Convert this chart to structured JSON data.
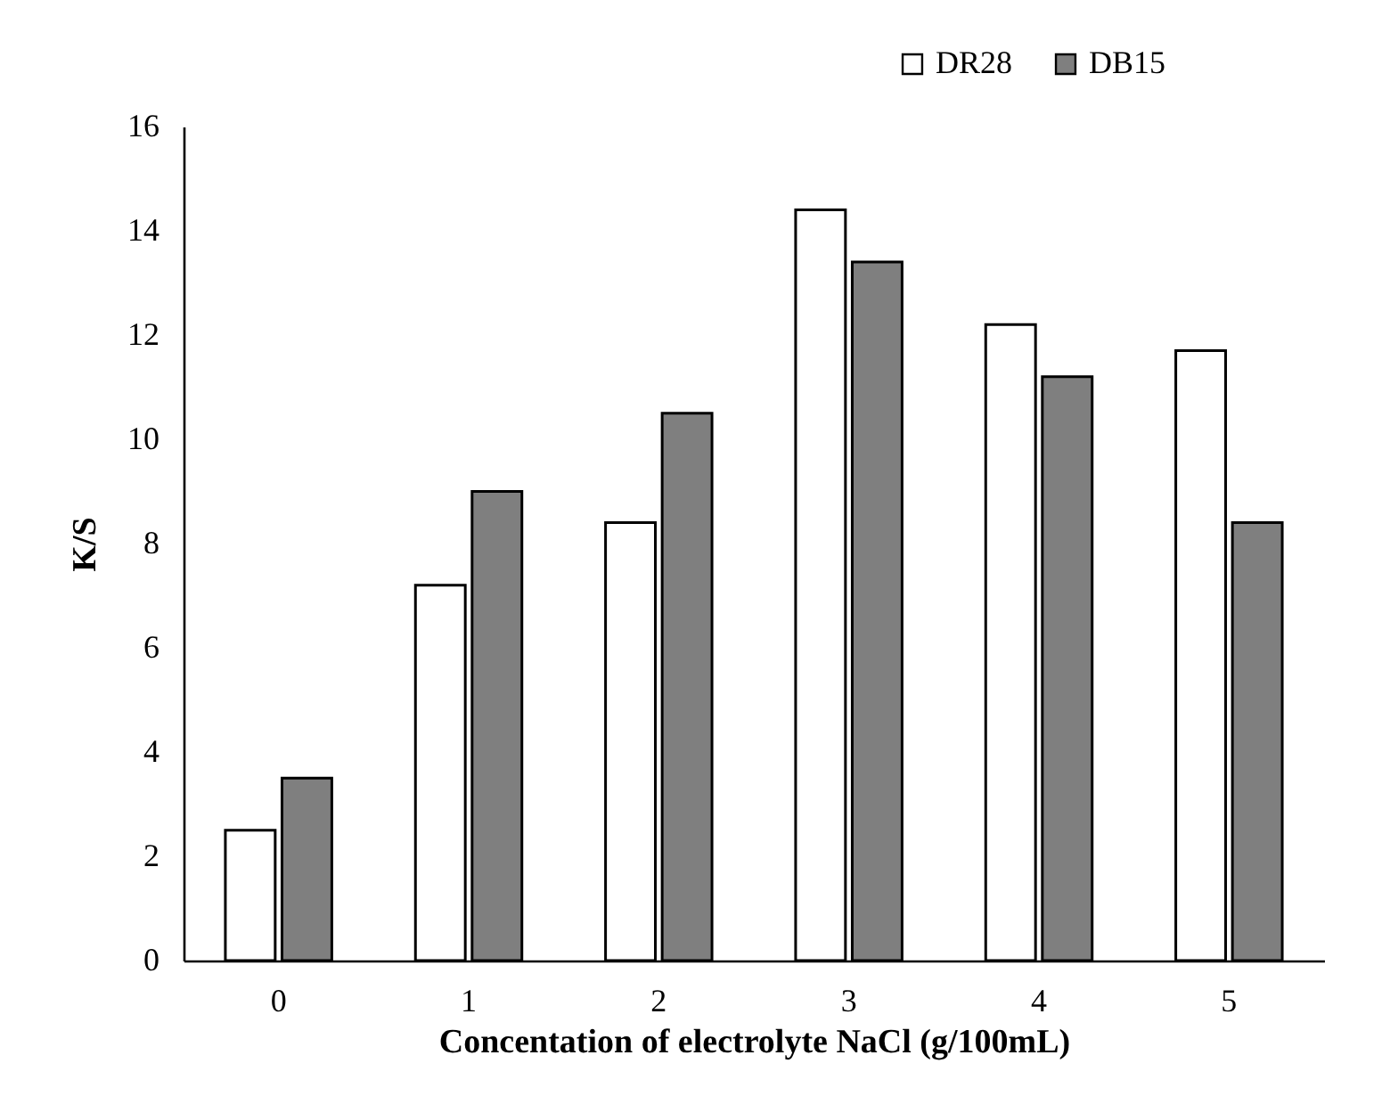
{
  "chart_data": {
    "type": "bar",
    "xlabel": "Concentation of electrolyte NaCl (g/100mL)",
    "ylabel": "K/S",
    "categories": [
      "0",
      "1",
      "2",
      "3",
      "4",
      "5"
    ],
    "series": [
      {
        "name": "DR28",
        "color": "#ffffff",
        "values": [
          2.5,
          7.2,
          8.4,
          14.4,
          12.2,
          11.7
        ]
      },
      {
        "name": "DB15",
        "color": "#7f7f7f",
        "values": [
          3.5,
          9.0,
          10.5,
          13.4,
          11.2,
          8.4
        ]
      }
    ],
    "ylim": [
      0,
      16
    ],
    "yticks": [
      0,
      2,
      4,
      6,
      8,
      10,
      12,
      14,
      16
    ],
    "legend": "top right"
  }
}
